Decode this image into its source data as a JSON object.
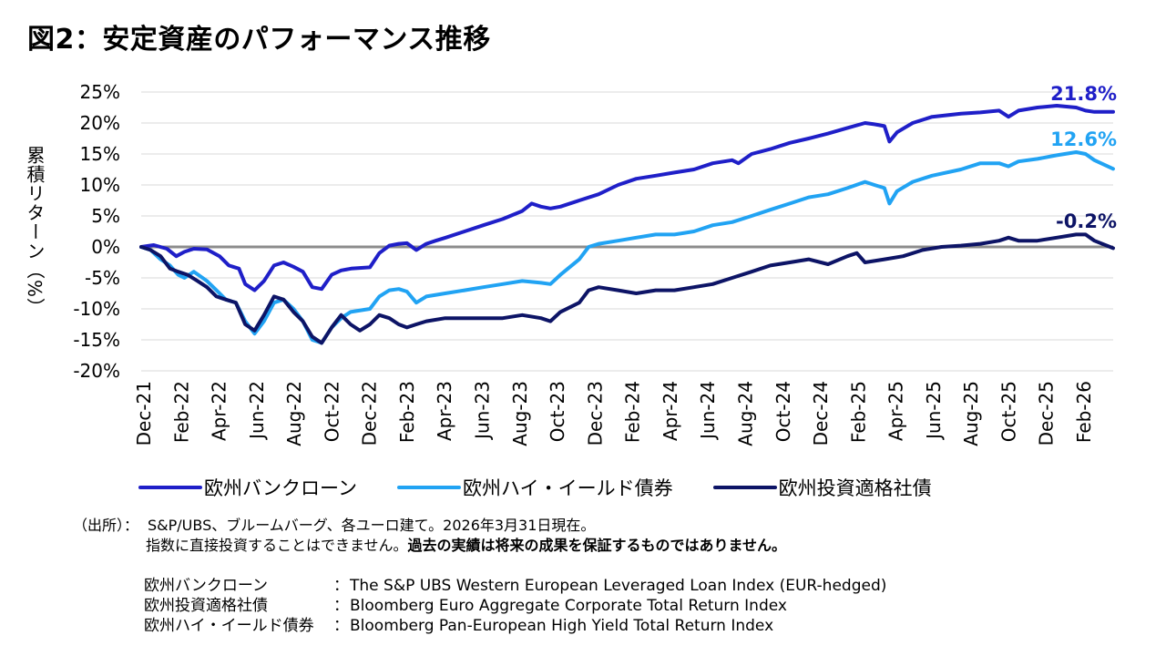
{
  "title": "図2：安定資産のパフォーマンス推移",
  "chart_data": {
    "type": "line",
    "ylabel": "累積リターン（%）",
    "ylim": [
      -20,
      25
    ],
    "y_ticks": [
      {
        "v": 25,
        "label": "25%"
      },
      {
        "v": 20,
        "label": "20%"
      },
      {
        "v": 15,
        "label": "15%"
      },
      {
        "v": 10,
        "label": "10%"
      },
      {
        "v": 5,
        "label": "5%"
      },
      {
        "v": 0,
        "label": "0%"
      },
      {
        "v": -5,
        "label": "-5%"
      },
      {
        "v": -10,
        "label": "-10%"
      },
      {
        "v": -15,
        "label": "-15%"
      },
      {
        "v": -20,
        "label": "-20%"
      }
    ],
    "x_ticks": [
      "Dec-21",
      "Feb-22",
      "Apr-22",
      "Jun-22",
      "Aug-22",
      "Oct-22",
      "Dec-22",
      "Feb-23",
      "Apr-23",
      "Jun-23",
      "Aug-23",
      "Oct-23",
      "Dec-23",
      "Feb-24",
      "Apr-24",
      "Jun-24",
      "Aug-24",
      "Oct-24",
      "Dec-24",
      "Feb-25",
      "Apr-25",
      "Jun-25",
      "Aug-25",
      "Oct-25",
      "Dec-25",
      "Feb-26"
    ],
    "x_range": [
      "2021-12-31",
      "2026-03-31"
    ],
    "grid": true,
    "zero_line": true,
    "legend_position": "bottom",
    "series": [
      {
        "name": "欧州バンクローン",
        "color": "#1f1fc8",
        "end_label": "21.8%",
        "points": [
          [
            "2021-12-31",
            0
          ],
          [
            "2022-01-20",
            0.3
          ],
          [
            "2022-02-10",
            -0.3
          ],
          [
            "2022-02-25",
            -1.5
          ],
          [
            "2022-03-10",
            -0.8
          ],
          [
            "2022-03-25",
            -0.3
          ],
          [
            "2022-04-15",
            -0.4
          ],
          [
            "2022-05-05",
            -1.5
          ],
          [
            "2022-05-20",
            -3
          ],
          [
            "2022-06-05",
            -3.5
          ],
          [
            "2022-06-15",
            -6
          ],
          [
            "2022-06-30",
            -7
          ],
          [
            "2022-07-15",
            -5.5
          ],
          [
            "2022-07-31",
            -3
          ],
          [
            "2022-08-15",
            -2.5
          ],
          [
            "2022-08-31",
            -3.2
          ],
          [
            "2022-09-15",
            -4
          ],
          [
            "2022-09-30",
            -6.5
          ],
          [
            "2022-10-15",
            -6.8
          ],
          [
            "2022-10-31",
            -4.5
          ],
          [
            "2022-11-15",
            -3.8
          ],
          [
            "2022-12-01",
            -3.5
          ],
          [
            "2022-12-31",
            -3.3
          ],
          [
            "2023-01-15",
            -1
          ],
          [
            "2023-01-31",
            0.2
          ],
          [
            "2023-02-15",
            0.5
          ],
          [
            "2023-02-28",
            0.6
          ],
          [
            "2023-03-15",
            -0.5
          ],
          [
            "2023-03-31",
            0.5
          ],
          [
            "2023-04-15",
            1
          ],
          [
            "2023-05-01",
            1.5
          ],
          [
            "2023-05-31",
            2.5
          ],
          [
            "2023-06-30",
            3.5
          ],
          [
            "2023-07-31",
            4.5
          ],
          [
            "2023-08-31",
            5.8
          ],
          [
            "2023-09-15",
            7
          ],
          [
            "2023-09-30",
            6.5
          ],
          [
            "2023-10-15",
            6.2
          ],
          [
            "2023-10-31",
            6.5
          ],
          [
            "2023-11-30",
            7.5
          ],
          [
            "2023-12-31",
            8.5
          ],
          [
            "2024-01-31",
            10
          ],
          [
            "2024-02-29",
            11
          ],
          [
            "2024-03-31",
            11.5
          ],
          [
            "2024-04-30",
            12
          ],
          [
            "2024-05-31",
            12.5
          ],
          [
            "2024-06-30",
            13.5
          ],
          [
            "2024-07-31",
            14
          ],
          [
            "2024-08-10",
            13.5
          ],
          [
            "2024-08-31",
            15
          ],
          [
            "2024-09-30",
            15.8
          ],
          [
            "2024-10-31",
            16.8
          ],
          [
            "2024-11-30",
            17.5
          ],
          [
            "2024-12-31",
            18.3
          ],
          [
            "2025-01-31",
            19.2
          ],
          [
            "2025-02-28",
            20
          ],
          [
            "2025-03-15",
            19.8
          ],
          [
            "2025-03-31",
            19.5
          ],
          [
            "2025-04-08",
            17
          ],
          [
            "2025-04-20",
            18.5
          ],
          [
            "2025-05-15",
            20
          ],
          [
            "2025-06-15",
            21
          ],
          [
            "2025-07-31",
            21.5
          ],
          [
            "2025-08-31",
            21.7
          ],
          [
            "2025-09-30",
            22
          ],
          [
            "2025-10-15",
            21
          ],
          [
            "2025-10-31",
            22
          ],
          [
            "2025-11-30",
            22.5
          ],
          [
            "2025-12-31",
            22.8
          ],
          [
            "2026-01-31",
            22.5
          ],
          [
            "2026-02-15",
            22
          ],
          [
            "2026-03-01",
            21.8
          ],
          [
            "2026-03-31",
            21.8
          ]
        ]
      },
      {
        "name": "欧州ハイ・イールド債券",
        "color": "#21a3f3",
        "end_label": "12.6%",
        "points": [
          [
            "2021-12-31",
            0
          ],
          [
            "2022-01-15",
            -0.5
          ],
          [
            "2022-01-31",
            -2
          ],
          [
            "2022-02-15",
            -3
          ],
          [
            "2022-02-28",
            -4.5
          ],
          [
            "2022-03-10",
            -5
          ],
          [
            "2022-03-25",
            -4
          ],
          [
            "2022-04-15",
            -5.5
          ],
          [
            "2022-04-30",
            -7
          ],
          [
            "2022-05-15",
            -8.5
          ],
          [
            "2022-05-31",
            -9
          ],
          [
            "2022-06-15",
            -12
          ],
          [
            "2022-06-30",
            -14
          ],
          [
            "2022-07-15",
            -12
          ],
          [
            "2022-07-31",
            -9
          ],
          [
            "2022-08-15",
            -8.5
          ],
          [
            "2022-08-31",
            -10
          ],
          [
            "2022-09-15",
            -12
          ],
          [
            "2022-09-30",
            -15
          ],
          [
            "2022-10-15",
            -15.5
          ],
          [
            "2022-10-31",
            -13
          ],
          [
            "2022-11-15",
            -11.5
          ],
          [
            "2022-11-30",
            -10.5
          ],
          [
            "2022-12-31",
            -10
          ],
          [
            "2023-01-15",
            -8
          ],
          [
            "2023-01-31",
            -7
          ],
          [
            "2023-02-15",
            -6.8
          ],
          [
            "2023-02-28",
            -7.2
          ],
          [
            "2023-03-15",
            -9
          ],
          [
            "2023-03-31",
            -8
          ],
          [
            "2023-04-30",
            -7.5
          ],
          [
            "2023-05-31",
            -7
          ],
          [
            "2023-06-30",
            -6.5
          ],
          [
            "2023-07-31",
            -6
          ],
          [
            "2023-08-31",
            -5.5
          ],
          [
            "2023-09-30",
            -5.8
          ],
          [
            "2023-10-15",
            -6
          ],
          [
            "2023-10-31",
            -4.5
          ],
          [
            "2023-11-30",
            -2
          ],
          [
            "2023-12-15",
            0
          ],
          [
            "2023-12-31",
            0.5
          ],
          [
            "2024-01-31",
            1
          ],
          [
            "2024-02-29",
            1.5
          ],
          [
            "2024-03-31",
            2
          ],
          [
            "2024-04-30",
            2
          ],
          [
            "2024-05-31",
            2.5
          ],
          [
            "2024-06-30",
            3.5
          ],
          [
            "2024-07-31",
            4
          ],
          [
            "2024-08-31",
            5
          ],
          [
            "2024-09-30",
            6
          ],
          [
            "2024-10-31",
            7
          ],
          [
            "2024-11-30",
            8
          ],
          [
            "2024-12-31",
            8.5
          ],
          [
            "2025-01-31",
            9.5
          ],
          [
            "2025-02-28",
            10.5
          ],
          [
            "2025-03-15",
            10
          ],
          [
            "2025-03-31",
            9.5
          ],
          [
            "2025-04-08",
            7
          ],
          [
            "2025-04-20",
            9
          ],
          [
            "2025-05-15",
            10.5
          ],
          [
            "2025-06-15",
            11.5
          ],
          [
            "2025-07-31",
            12.5
          ],
          [
            "2025-08-31",
            13.5
          ],
          [
            "2025-09-30",
            13.5
          ],
          [
            "2025-10-15",
            13
          ],
          [
            "2025-10-31",
            13.8
          ],
          [
            "2025-11-30",
            14.2
          ],
          [
            "2025-12-31",
            14.8
          ],
          [
            "2026-01-31",
            15.3
          ],
          [
            "2026-02-15",
            15
          ],
          [
            "2026-03-01",
            14
          ],
          [
            "2026-03-31",
            12.6
          ]
        ]
      },
      {
        "name": "欧州投資適格社債",
        "color": "#0d1466",
        "end_label": "-0.2%",
        "points": [
          [
            "2021-12-31",
            0
          ],
          [
            "2022-01-15",
            -0.5
          ],
          [
            "2022-01-31",
            -1.5
          ],
          [
            "2022-02-15",
            -3.5
          ],
          [
            "2022-02-28",
            -4
          ],
          [
            "2022-03-15",
            -4.5
          ],
          [
            "2022-03-31",
            -5.5
          ],
          [
            "2022-04-15",
            -6.5
          ],
          [
            "2022-04-30",
            -8
          ],
          [
            "2022-05-15",
            -8.5
          ],
          [
            "2022-05-31",
            -9
          ],
          [
            "2022-06-15",
            -12.5
          ],
          [
            "2022-06-30",
            -13.5
          ],
          [
            "2022-07-15",
            -11
          ],
          [
            "2022-07-31",
            -8
          ],
          [
            "2022-08-15",
            -8.5
          ],
          [
            "2022-08-31",
            -10.5
          ],
          [
            "2022-09-15",
            -12
          ],
          [
            "2022-09-30",
            -14.5
          ],
          [
            "2022-10-15",
            -15.5
          ],
          [
            "2022-10-31",
            -13
          ],
          [
            "2022-11-15",
            -11
          ],
          [
            "2022-11-30",
            -12.5
          ],
          [
            "2022-12-15",
            -13.5
          ],
          [
            "2022-12-31",
            -12.5
          ],
          [
            "2023-01-15",
            -11
          ],
          [
            "2023-01-31",
            -11.5
          ],
          [
            "2023-02-15",
            -12.5
          ],
          [
            "2023-02-28",
            -13
          ],
          [
            "2023-03-15",
            -12.5
          ],
          [
            "2023-03-31",
            -12
          ],
          [
            "2023-04-30",
            -11.5
          ],
          [
            "2023-05-31",
            -11.5
          ],
          [
            "2023-06-30",
            -11.5
          ],
          [
            "2023-07-31",
            -11.5
          ],
          [
            "2023-08-31",
            -11
          ],
          [
            "2023-09-30",
            -11.5
          ],
          [
            "2023-10-15",
            -12
          ],
          [
            "2023-10-31",
            -10.5
          ],
          [
            "2023-11-30",
            -9
          ],
          [
            "2023-12-15",
            -7
          ],
          [
            "2023-12-31",
            -6.5
          ],
          [
            "2024-01-31",
            -7
          ],
          [
            "2024-02-29",
            -7.5
          ],
          [
            "2024-03-31",
            -7
          ],
          [
            "2024-04-30",
            -7
          ],
          [
            "2024-05-31",
            -6.5
          ],
          [
            "2024-06-30",
            -6
          ],
          [
            "2024-07-31",
            -5
          ],
          [
            "2024-08-31",
            -4
          ],
          [
            "2024-09-30",
            -3
          ],
          [
            "2024-10-31",
            -2.5
          ],
          [
            "2024-11-30",
            -2
          ],
          [
            "2024-12-31",
            -2.8
          ],
          [
            "2025-01-31",
            -1.5
          ],
          [
            "2025-02-15",
            -1
          ],
          [
            "2025-02-28",
            -2.5
          ],
          [
            "2025-03-31",
            -2
          ],
          [
            "2025-04-30",
            -1.5
          ],
          [
            "2025-05-31",
            -0.5
          ],
          [
            "2025-06-30",
            0
          ],
          [
            "2025-07-31",
            0.2
          ],
          [
            "2025-08-31",
            0.5
          ],
          [
            "2025-09-30",
            1
          ],
          [
            "2025-10-15",
            1.5
          ],
          [
            "2025-10-31",
            1
          ],
          [
            "2025-11-30",
            1
          ],
          [
            "2025-12-31",
            1.5
          ],
          [
            "2026-01-31",
            2
          ],
          [
            "2026-02-15",
            2
          ],
          [
            "2026-03-01",
            1
          ],
          [
            "2026-03-31",
            -0.2
          ]
        ]
      }
    ]
  },
  "notes": {
    "source_label": "（出所）：",
    "source_text": "S&P/UBS、ブルームバーグ、各ユーロ建て。2026年3月31日現在。",
    "line2_normal": "指数に直接投資することはできません。",
    "line2_bold": "過去の実績は将来の成果を保証するものではありません。"
  },
  "definitions": [
    {
      "name": "欧州バンクローン",
      "colon": "：",
      "desc": "The S&P UBS Western European Leveraged Loan Index (EUR-hedged)"
    },
    {
      "name": "欧州投資適格社債",
      "colon": "：",
      "desc": "Bloomberg Euro Aggregate Corporate Total Return Index"
    },
    {
      "name": "欧州ハイ・イールド債券",
      "colon": "：",
      "desc": "Bloomberg Pan-European High Yield Total Return Index"
    }
  ]
}
